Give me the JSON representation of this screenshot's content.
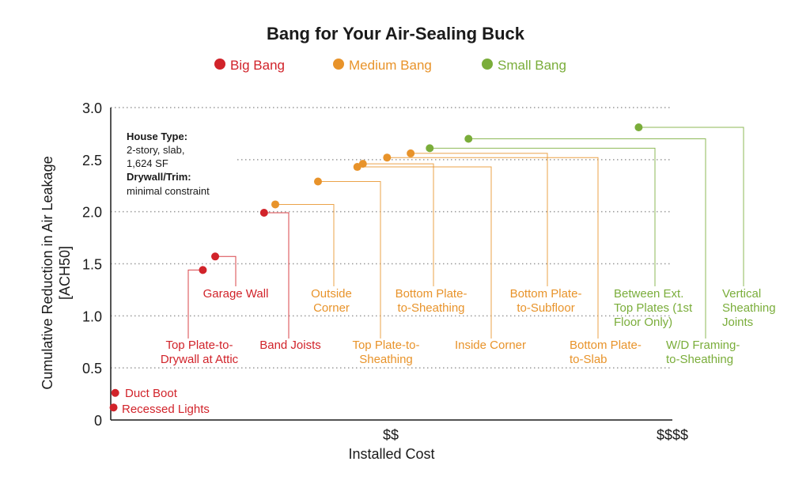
{
  "chart_data": {
    "type": "scatter",
    "title": "Bang for Your Air-Sealing Buck",
    "xlabel": "Installed Cost",
    "ylabel": [
      "Cumulative Reduction in Air Leakage",
      "[ACH50]"
    ],
    "ylim": [
      0,
      3.0
    ],
    "xlim": [
      0,
      100
    ],
    "y_ticks": [
      "0",
      "0.5",
      "1.0",
      "1.5",
      "2.0",
      "2.5",
      "3.0"
    ],
    "y_tick_values": [
      0,
      0.5,
      1.0,
      1.5,
      2.0,
      2.5,
      3.0
    ],
    "x_ticks": [
      {
        "label": "$$",
        "x": 50
      },
      {
        "label": "$$$$",
        "x": 100
      }
    ],
    "grid": "horizontal dotted",
    "legend_position": "top-center",
    "legend": [
      {
        "name": "Big Bang",
        "color": "#d1232a"
      },
      {
        "name": "Medium Bang",
        "color": "#e8932a"
      },
      {
        "name": "Small Bang",
        "color": "#7aad3a"
      }
    ],
    "annotation": {
      "line1_bold": "House Type:",
      "line2": "2-story, slab,",
      "line3": "1,624 SF",
      "line4_bold": "Drywall/Trim:",
      "line5": "minimal constraint"
    },
    "points": [
      {
        "label": "Recessed Lights",
        "lines": [
          "Recessed Lights"
        ],
        "group": "big",
        "x": 0.5,
        "y": 0.12
      },
      {
        "label": "Duct Boot",
        "lines": [
          "Duct Boot"
        ],
        "group": "big",
        "x": 0.8,
        "y": 0.26
      },
      {
        "label": "Top Plate-to-Drywall at Attic",
        "lines": [
          "Top Plate-to-",
          "Drywall at Attic"
        ],
        "group": "big",
        "x": 16.4,
        "y": 1.44
      },
      {
        "label": "Garage Wall",
        "lines": [
          "Garage Wall"
        ],
        "group": "big",
        "x": 18.6,
        "y": 1.57
      },
      {
        "label": "Band Joists",
        "lines": [
          "Band Joists"
        ],
        "group": "big",
        "x": 27.3,
        "y": 1.99
      },
      {
        "label": "Outside Corner",
        "lines": [
          "Outside",
          "Corner"
        ],
        "group": "medium",
        "x": 29.3,
        "y": 2.07
      },
      {
        "label": "Top Plate-to-Sheathing",
        "lines": [
          "Top Plate-to-",
          "Sheathing"
        ],
        "group": "medium",
        "x": 36.9,
        "y": 2.29
      },
      {
        "label": "Inside Corner",
        "lines": [
          "Inside Corner"
        ],
        "group": "medium",
        "x": 43.9,
        "y": 2.43
      },
      {
        "label": "Bottom Plate-to-Sheathing",
        "lines": [
          "Bottom Plate-",
          "to-Sheathing"
        ],
        "group": "medium",
        "x": 44.9,
        "y": 2.46
      },
      {
        "label": "Bottom Plate-to-Slab",
        "lines": [
          "Bottom Plate-",
          "to-Slab"
        ],
        "group": "medium",
        "x": 49.2,
        "y": 2.52
      },
      {
        "label": "Bottom Plate-to-Subfloor",
        "lines": [
          "Bottom Plate-",
          "to-Subfloor"
        ],
        "group": "medium",
        "x": 53.4,
        "y": 2.56
      },
      {
        "label": "Between Ext. Top Plates (1st Floor Only)",
        "lines": [
          "Between Ext.",
          "Top Plates (1st",
          "Floor Only)"
        ],
        "group": "small",
        "x": 56.8,
        "y": 2.61
      },
      {
        "label": "W/D Framing-to-Sheathing",
        "lines": [
          "W/D Framing-",
          "to-Sheathing"
        ],
        "group": "small",
        "x": 63.7,
        "y": 2.7
      },
      {
        "label": "Vertical Sheathing Joints",
        "lines": [
          "Vertical",
          "Sheathing",
          "Joints"
        ],
        "group": "small",
        "x": 94.0,
        "y": 2.81
      }
    ]
  }
}
